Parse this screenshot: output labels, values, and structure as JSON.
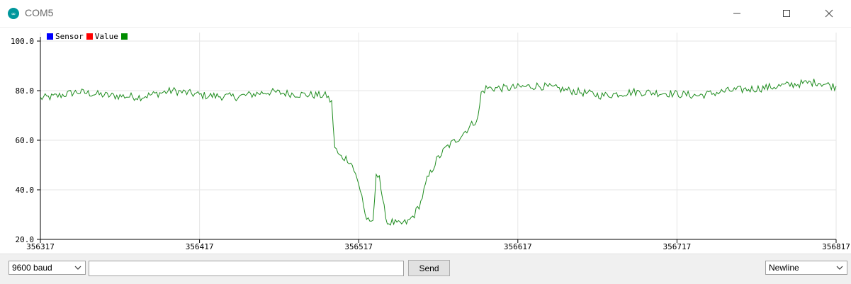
{
  "window": {
    "title": "COM5"
  },
  "legend": [
    {
      "label": "Sensor",
      "color": "#0000ff"
    },
    {
      "label": "Value",
      "color": "#ff0000"
    },
    {
      "label": "",
      "color": "#008c00"
    }
  ],
  "toolbar": {
    "baud_rate": "9600 baud",
    "input_value": "",
    "send_label": "Send",
    "line_ending": "Newline"
  },
  "chart_data": {
    "type": "line",
    "x_tick_labels": [
      "356317",
      "356417",
      "356517",
      "356617",
      "356717",
      "356817"
    ],
    "y_tick_labels": [
      "20.0",
      "40.0",
      "60.0",
      "80.0",
      "100.0"
    ],
    "xlim": [
      356317,
      356817
    ],
    "ylim": [
      20,
      100
    ],
    "grid": true,
    "legend_position": "top-left",
    "series": [
      {
        "color": "#1e8c1e",
        "keypoints": [
          [
            356317,
            77
          ],
          [
            356325,
            77.5
          ],
          [
            356340,
            79.5
          ],
          [
            356360,
            78
          ],
          [
            356380,
            77.5
          ],
          [
            356400,
            80
          ],
          [
            356420,
            78
          ],
          [
            356440,
            77.5
          ],
          [
            356460,
            79.5
          ],
          [
            356480,
            78.5
          ],
          [
            356497,
            78
          ],
          [
            356500,
            75
          ],
          [
            356502,
            57
          ],
          [
            356505,
            53.5
          ],
          [
            356510,
            52.5
          ],
          [
            356513,
            50
          ],
          [
            356516,
            44
          ],
          [
            356519,
            38
          ],
          [
            356521,
            30
          ],
          [
            356524,
            26
          ],
          [
            356526,
            28
          ],
          [
            356527,
            35
          ],
          [
            356528,
            47
          ],
          [
            356530,
            46
          ],
          [
            356532,
            35
          ],
          [
            356534,
            30
          ],
          [
            356535,
            26.5
          ],
          [
            356538,
            27
          ],
          [
            356542,
            26
          ],
          [
            356548,
            27
          ],
          [
            356552,
            30
          ],
          [
            356556,
            35
          ],
          [
            356560,
            44
          ],
          [
            356566,
            52
          ],
          [
            356572,
            57
          ],
          [
            356580,
            61
          ],
          [
            356586,
            65
          ],
          [
            356592,
            69
          ],
          [
            356594,
            79
          ],
          [
            356597,
            81
          ],
          [
            356610,
            81
          ],
          [
            356630,
            82
          ],
          [
            356650,
            80
          ],
          [
            356670,
            78
          ],
          [
            356690,
            79.5
          ],
          [
            356710,
            79
          ],
          [
            356730,
            78
          ],
          [
            356750,
            80
          ],
          [
            356770,
            81
          ],
          [
            356790,
            82.5
          ],
          [
            356805,
            83.5
          ],
          [
            356817,
            81.5
          ]
        ]
      }
    ]
  }
}
